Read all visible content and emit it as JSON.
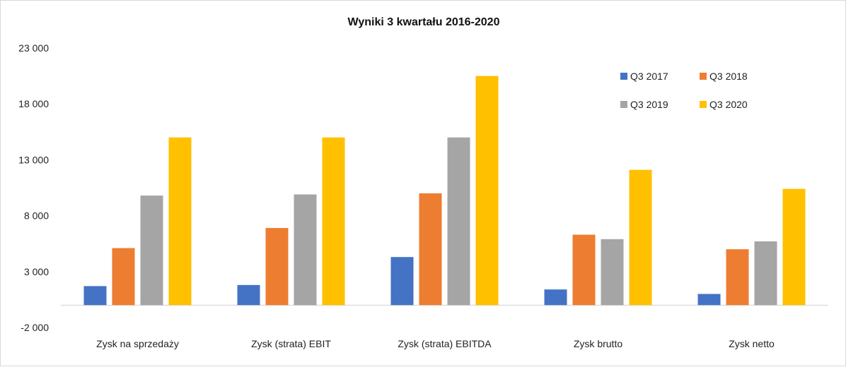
{
  "chart_data": {
    "type": "bar",
    "title": "Wyniki 3 kwartału 2016-2020",
    "xlabel": "",
    "ylabel": "",
    "ylim": [
      -2000,
      23000
    ],
    "yticks": [
      23000,
      18000,
      13000,
      8000,
      3000,
      -2000
    ],
    "ytick_labels": [
      "23 000",
      "18 000",
      "13 000",
      "8 000",
      "3 000",
      "-2 000"
    ],
    "grid": false,
    "legend_position": "top-right",
    "categories": [
      "Zysk na sprzedaży",
      "Zysk (strata) EBIT",
      "Zysk (strata) EBITDA",
      "Zysk brutto",
      "Zysk netto"
    ],
    "series": [
      {
        "name": "Q3 2017",
        "color": "#4472c4",
        "values": [
          1700,
          1800,
          4300,
          1400,
          1000
        ]
      },
      {
        "name": "Q3 2018",
        "color": "#ed7d31",
        "values": [
          5100,
          6900,
          10000,
          6300,
          5000
        ]
      },
      {
        "name": "Q3 2019",
        "color": "#a5a5a5",
        "values": [
          9800,
          9900,
          15000,
          5900,
          5700
        ]
      },
      {
        "name": "Q3 2020",
        "color": "#ffc000",
        "values": [
          15000,
          15000,
          20500,
          12100,
          10400
        ]
      }
    ]
  }
}
